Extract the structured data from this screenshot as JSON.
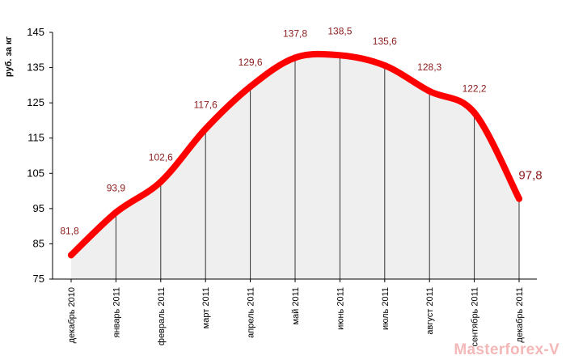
{
  "chart_data": {
    "type": "line",
    "title": "",
    "xlabel": "",
    "ylabel": "руб. за кг",
    "ylim": [
      75,
      145
    ],
    "yticks": [
      "75",
      "85",
      "95",
      "105",
      "115",
      "125",
      "135",
      "145"
    ],
    "grid": false,
    "legend": "none",
    "line_color": "#ff0000",
    "area_color": "#e4e4e4",
    "categories": [
      "декабрь 2010",
      "январь 2011",
      "февраль 2011",
      "март 2011",
      "апрель 2011",
      "май 2011",
      "июнь 2011",
      "июль 2011",
      "август 2011",
      "сентябрь 2011",
      "декабрь 2011"
    ],
    "labels": [
      "81,8",
      "93,9",
      "102,6",
      "117,6",
      "129,6",
      "137,8",
      "138,5",
      "135,6",
      "128,3",
      "122,2",
      "97,8"
    ],
    "series": [
      {
        "values": [
          81.8,
          93.9,
          102.6,
          117.6,
          129.6,
          137.8,
          138.5,
          135.6,
          128.3,
          122.2,
          97.8
        ]
      }
    ]
  },
  "watermark": "Masterforex-V"
}
